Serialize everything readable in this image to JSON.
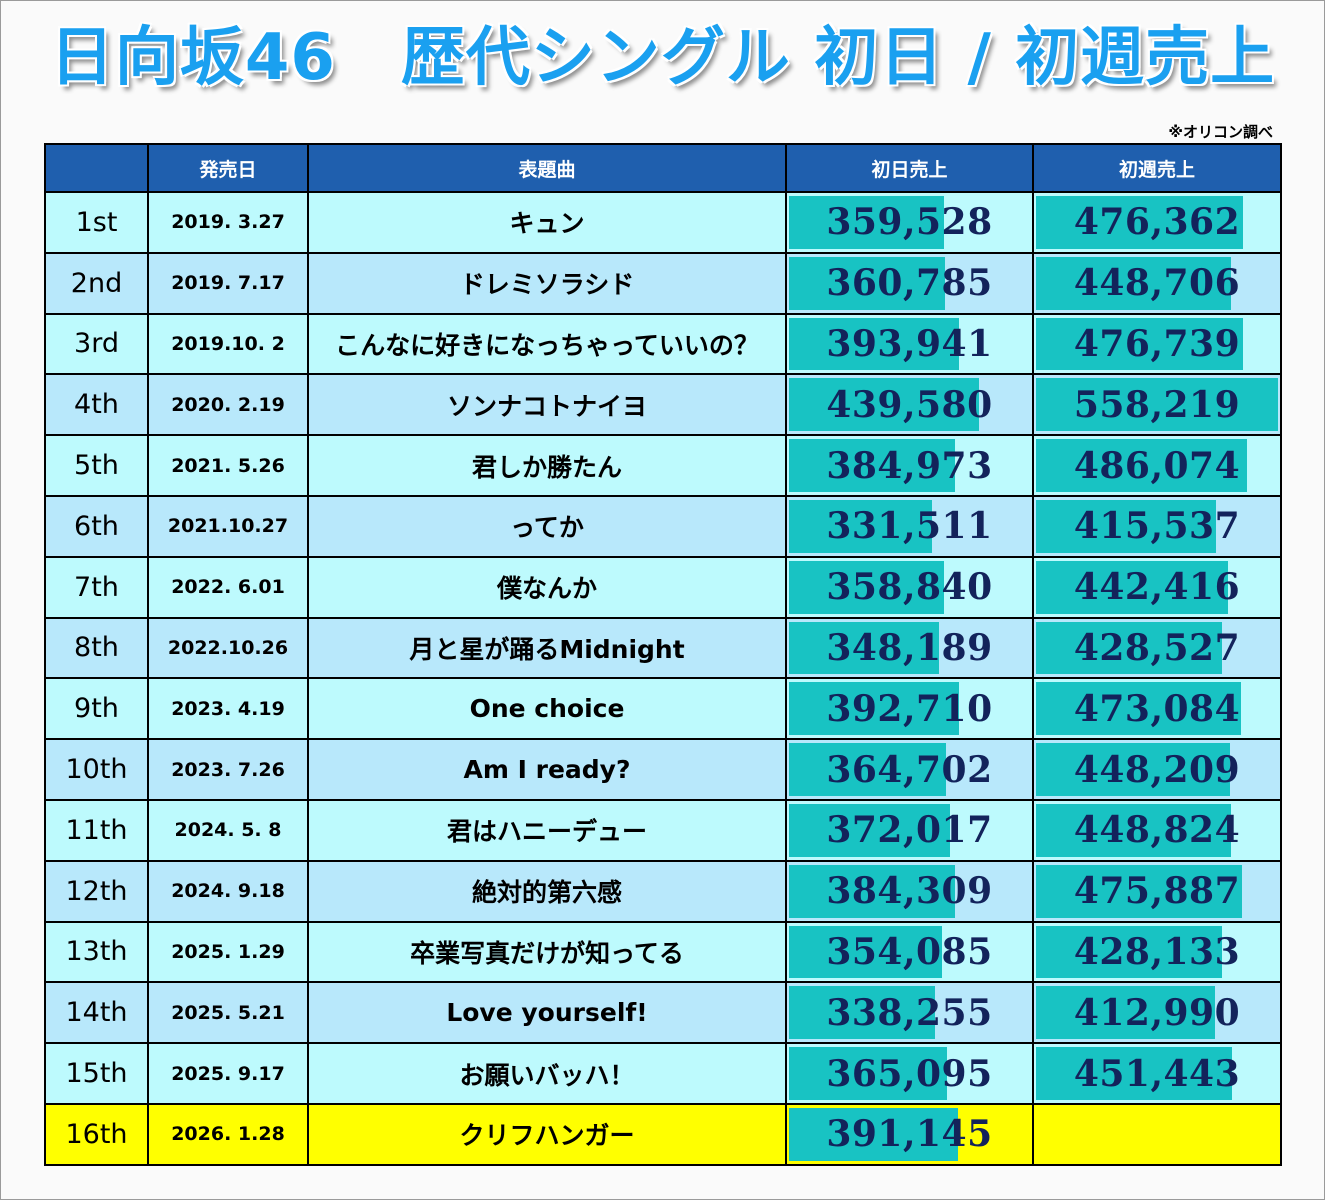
{
  "title": "日向坂46　歴代シングル 初日 / 初週売上",
  "source_note": "※オリコン調べ",
  "colors": {
    "title": "#1aa0f0",
    "header_bg": "#1f5fae",
    "row_odd": "#bdfafd",
    "row_even": "#b8e8fb",
    "row_latest": "#ffff00",
    "bar": "#18c3c3",
    "value_text": "#13235b"
  },
  "headers": {
    "number": "",
    "release_date": "発売日",
    "song": "表題曲",
    "first_day": "初日売上",
    "first_week": "初週売上"
  },
  "chart_data": {
    "type": "table",
    "title": "日向坂46　歴代シングル 初日 / 初週売上",
    "columns": [
      "",
      "発売日",
      "表題曲",
      "初日売上",
      "初週売上"
    ],
    "bar_scale_max": 558219,
    "rows": [
      {
        "num": "1st",
        "date": "2019.  3.27",
        "song": "キュン",
        "first_day": 359528,
        "first_week": 476362
      },
      {
        "num": "2nd",
        "date": "2019.  7.17",
        "song": "ドレミソラシド",
        "first_day": 360785,
        "first_week": 448706
      },
      {
        "num": "3rd",
        "date": "2019.10.  2",
        "song": "こんなに好きになっちゃっていいの？",
        "first_day": 393941,
        "first_week": 476739
      },
      {
        "num": "4th",
        "date": "2020.  2.19",
        "song": "ソンナコトナイヨ",
        "first_day": 439580,
        "first_week": 558219
      },
      {
        "num": "5th",
        "date": "2021.  5.26",
        "song": "君しか勝たん",
        "first_day": 384973,
        "first_week": 486074
      },
      {
        "num": "6th",
        "date": "2021.10.27",
        "song": "ってか",
        "first_day": 331511,
        "first_week": 415537
      },
      {
        "num": "7th",
        "date": "2022.  6.01",
        "song": "僕なんか",
        "first_day": 358840,
        "first_week": 442416
      },
      {
        "num": "8th",
        "date": "2022.10.26",
        "song": "月と星が踊るMidnight",
        "first_day": 348189,
        "first_week": 428527
      },
      {
        "num": "9th",
        "date": "2023.  4.19",
        "song": "One choice",
        "first_day": 392710,
        "first_week": 473084
      },
      {
        "num": "10th",
        "date": "2023.  7.26",
        "song": "Am I ready?",
        "first_day": 364702,
        "first_week": 448209
      },
      {
        "num": "11th",
        "date": "2024.  5.  8",
        "song": "君はハニーデュー",
        "first_day": 372017,
        "first_week": 448824
      },
      {
        "num": "12th",
        "date": "2024.  9.18",
        "song": "絶対的第六感",
        "first_day": 384309,
        "first_week": 475887
      },
      {
        "num": "13th",
        "date": "2025.  1.29",
        "song": "卒業写真だけが知ってる",
        "first_day": 354085,
        "first_week": 428133
      },
      {
        "num": "14th",
        "date": "2025.  5.21",
        "song": "Love yourself!",
        "first_day": 338255,
        "first_week": 412990
      },
      {
        "num": "15th",
        "date": "2025.  9.17",
        "song": "お願いバッハ！",
        "first_day": 365095,
        "first_week": 451443
      },
      {
        "num": "16th",
        "date": "2026.  1.28",
        "song": "クリフハンガー",
        "first_day": 391145,
        "first_week": null,
        "latest": true
      }
    ]
  }
}
